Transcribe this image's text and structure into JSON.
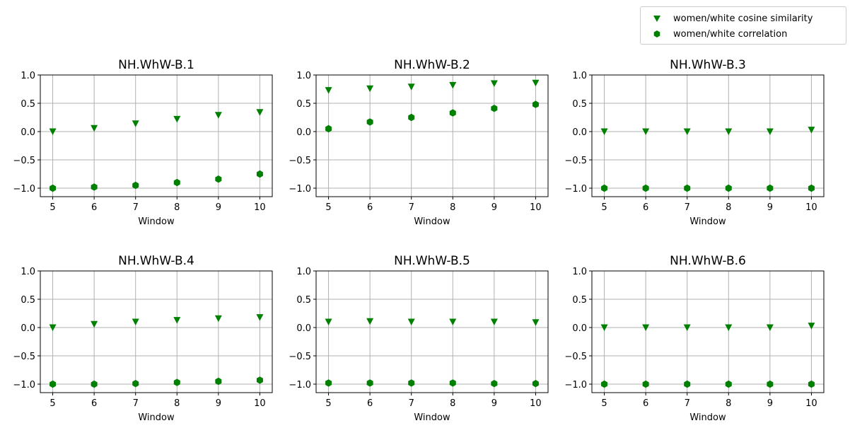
{
  "legend": {
    "items": [
      {
        "label": "women/white cosine similarity",
        "marker": "triangle-down",
        "color": "#008000"
      },
      {
        "label": "women/white correlation",
        "marker": "hexagon",
        "color": "#008000"
      }
    ]
  },
  "chart_data": [
    {
      "type": "scatter",
      "title": "NH.WhW-B.1",
      "xlabel": "Window",
      "ylabel": "",
      "ylim": [
        -1.15,
        1.0
      ],
      "xticks": [
        5,
        6,
        7,
        8,
        9,
        10
      ],
      "yticks": [
        -1.0,
        -0.5,
        0.0,
        0.5,
        1.0
      ],
      "ytick_labels": [
        "−1.0",
        "−0.5",
        "0.0",
        "0.5",
        "1.0"
      ],
      "grid": "x",
      "x": [
        5,
        6,
        7,
        8,
        9,
        10
      ],
      "series": [
        {
          "name": "women/white cosine similarity",
          "marker": "triangle-down",
          "color": "#008000",
          "values": [
            0.0,
            0.06,
            0.14,
            0.22,
            0.29,
            0.34
          ]
        },
        {
          "name": "women/white correlation",
          "marker": "hexagon",
          "color": "#008000",
          "values": [
            -1.0,
            -0.98,
            -0.95,
            -0.9,
            -0.84,
            -0.75
          ]
        }
      ]
    },
    {
      "type": "scatter",
      "title": "NH.WhW-B.2",
      "xlabel": "Window",
      "ylabel": "",
      "ylim": [
        -1.15,
        1.0
      ],
      "xticks": [
        5,
        6,
        7,
        8,
        9,
        10
      ],
      "yticks": [
        -1.0,
        -0.5,
        0.0,
        0.5,
        1.0
      ],
      "ytick_labels": [
        "−1.0",
        "−0.5",
        "0.0",
        "0.5",
        "1.0"
      ],
      "grid": "x",
      "x": [
        5,
        6,
        7,
        8,
        9,
        10
      ],
      "series": [
        {
          "name": "women/white cosine similarity",
          "marker": "triangle-down",
          "color": "#008000",
          "values": [
            0.73,
            0.76,
            0.79,
            0.82,
            0.85,
            0.86
          ]
        },
        {
          "name": "women/white correlation",
          "marker": "hexagon",
          "color": "#008000",
          "values": [
            0.05,
            0.17,
            0.25,
            0.33,
            0.41,
            0.48
          ]
        }
      ]
    },
    {
      "type": "scatter",
      "title": "NH.WhW-B.3",
      "xlabel": "Window",
      "ylabel": "",
      "ylim": [
        -1.15,
        1.0
      ],
      "xticks": [
        5,
        6,
        7,
        8,
        9,
        10
      ],
      "yticks": [
        -1.0,
        -0.5,
        0.0,
        0.5,
        1.0
      ],
      "ytick_labels": [
        "−1.0",
        "−0.5",
        "0.0",
        "0.5",
        "1.0"
      ],
      "grid": "x",
      "x": [
        5,
        6,
        7,
        8,
        9,
        10
      ],
      "series": [
        {
          "name": "women/white cosine similarity",
          "marker": "triangle-down",
          "color": "#008000",
          "values": [
            0.0,
            0.0,
            0.0,
            0.0,
            0.0,
            0.03
          ]
        },
        {
          "name": "women/white correlation",
          "marker": "hexagon",
          "color": "#008000",
          "values": [
            -1.0,
            -1.0,
            -1.0,
            -1.0,
            -1.0,
            -1.0
          ]
        }
      ]
    },
    {
      "type": "scatter",
      "title": "NH.WhW-B.4",
      "xlabel": "Window",
      "ylabel": "",
      "ylim": [
        -1.15,
        1.0
      ],
      "xticks": [
        5,
        6,
        7,
        8,
        9,
        10
      ],
      "yticks": [
        -1.0,
        -0.5,
        0.0,
        0.5,
        1.0
      ],
      "ytick_labels": [
        "−1.0",
        "−0.5",
        "0.0",
        "0.5",
        "1.0"
      ],
      "grid": "x",
      "x": [
        5,
        6,
        7,
        8,
        9,
        10
      ],
      "series": [
        {
          "name": "women/white cosine similarity",
          "marker": "triangle-down",
          "color": "#008000",
          "values": [
            0.0,
            0.06,
            0.1,
            0.13,
            0.16,
            0.18
          ]
        },
        {
          "name": "women/white correlation",
          "marker": "hexagon",
          "color": "#008000",
          "values": [
            -1.0,
            -1.0,
            -0.99,
            -0.97,
            -0.95,
            -0.93
          ]
        }
      ]
    },
    {
      "type": "scatter",
      "title": "NH.WhW-B.5",
      "xlabel": "Window",
      "ylabel": "",
      "ylim": [
        -1.15,
        1.0
      ],
      "xticks": [
        5,
        6,
        7,
        8,
        9,
        10
      ],
      "yticks": [
        -1.0,
        -0.5,
        0.0,
        0.5,
        1.0
      ],
      "ytick_labels": [
        "−1.0",
        "−0.5",
        "0.0",
        "0.5",
        "1.0"
      ],
      "grid": "x",
      "x": [
        5,
        6,
        7,
        8,
        9,
        10
      ],
      "series": [
        {
          "name": "women/white cosine similarity",
          "marker": "triangle-down",
          "color": "#008000",
          "values": [
            0.1,
            0.11,
            0.1,
            0.1,
            0.1,
            0.09
          ]
        },
        {
          "name": "women/white correlation",
          "marker": "hexagon",
          "color": "#008000",
          "values": [
            -0.98,
            -0.98,
            -0.98,
            -0.98,
            -0.99,
            -0.99
          ]
        }
      ]
    },
    {
      "type": "scatter",
      "title": "NH.WhW-B.6",
      "xlabel": "Window",
      "ylabel": "",
      "ylim": [
        -1.15,
        1.0
      ],
      "xticks": [
        5,
        6,
        7,
        8,
        9,
        10
      ],
      "yticks": [
        -1.0,
        -0.5,
        0.0,
        0.5,
        1.0
      ],
      "ytick_labels": [
        "−1.0",
        "−0.5",
        "0.0",
        "0.5",
        "1.0"
      ],
      "grid": "x",
      "x": [
        5,
        6,
        7,
        8,
        9,
        10
      ],
      "series": [
        {
          "name": "women/white cosine similarity",
          "marker": "triangle-down",
          "color": "#008000",
          "values": [
            0.0,
            0.0,
            0.0,
            0.0,
            0.0,
            0.03
          ]
        },
        {
          "name": "women/white correlation",
          "marker": "hexagon",
          "color": "#008000",
          "values": [
            -1.0,
            -1.0,
            -1.0,
            -1.0,
            -1.0,
            -1.0
          ]
        }
      ]
    }
  ]
}
